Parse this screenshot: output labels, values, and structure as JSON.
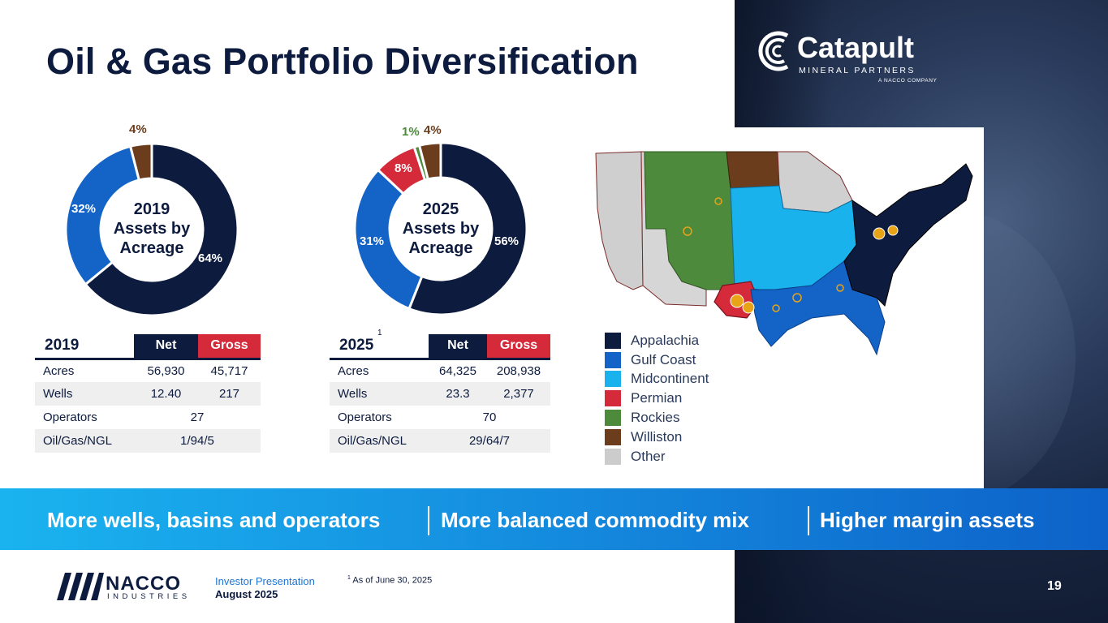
{
  "title": "Oil & Gas Portfolio Diversification",
  "brand": {
    "catapult_name": "Catapult",
    "catapult_sub": "MINERAL PARTNERS",
    "catapult_tag": "A NACCO COMPANY",
    "nacco_name": "NACCO",
    "nacco_sub": "INDUSTRIES"
  },
  "colors": {
    "navy": "#0d1b3e",
    "appalachia": "#0d1b3e",
    "gulf_coast": "#1464c8",
    "midcontinent": "#1ab2ec",
    "permian": "#d42a3a",
    "rockies": "#4d8a3c",
    "williston": "#6b3d1c",
    "other": "#cccccc"
  },
  "chart_data": [
    {
      "type": "pie",
      "title": "2019 Assets by Acreage",
      "center_label": [
        "2019",
        "Assets by",
        "Acreage"
      ],
      "labels": [
        "Appalachia",
        "Gulf Coast",
        "Williston"
      ],
      "values": [
        64,
        32,
        4
      ],
      "value_labels": [
        "64%",
        "32%",
        "4%"
      ]
    },
    {
      "type": "pie",
      "title": "2025 Assets by Acreage",
      "center_label": [
        "2025",
        "Assets by",
        "Acreage"
      ],
      "labels": [
        "Appalachia",
        "Gulf Coast",
        "Permian",
        "Rockies",
        "Williston"
      ],
      "values": [
        56,
        31,
        8,
        1,
        4
      ],
      "value_labels": [
        "56%",
        "31%",
        "8%",
        "1%",
        "4%"
      ]
    }
  ],
  "table_2019": {
    "year": "2019",
    "net_label": "Net",
    "gross_label": "Gross",
    "rows": [
      {
        "label": "Acres",
        "net": "56,930",
        "gross": "45,717"
      },
      {
        "label": "Wells",
        "net": "12.40",
        "gross": "217"
      },
      {
        "label": "Operators",
        "value": "27"
      },
      {
        "label": "Oil/Gas/NGL",
        "value": "1/94/5"
      }
    ]
  },
  "table_2025": {
    "year": "2025",
    "footnote_marker": "1",
    "net_label": "Net",
    "gross_label": "Gross",
    "rows": [
      {
        "label": "Acres",
        "net": "64,325",
        "gross": "208,938"
      },
      {
        "label": "Wells",
        "net": "23.3",
        "gross": "2,377"
      },
      {
        "label": "Operators",
        "value": "70"
      },
      {
        "label": "Oil/Gas/NGL",
        "value": "29/64/7"
      }
    ]
  },
  "map": {
    "legend": [
      "Appalachia",
      "Gulf Coast",
      "Midcontinent",
      "Permian",
      "Rockies",
      "Williston",
      "Other"
    ]
  },
  "banner": {
    "part1": "More wells, basins and operators",
    "part2": "More balanced commodity mix",
    "part3": "Higher margin assets"
  },
  "footer": {
    "line1": "Investor Presentation",
    "line2": "August 2025",
    "footnote_marker": "1",
    "footnote_text": "As of June 30, 2025",
    "page": "19"
  }
}
